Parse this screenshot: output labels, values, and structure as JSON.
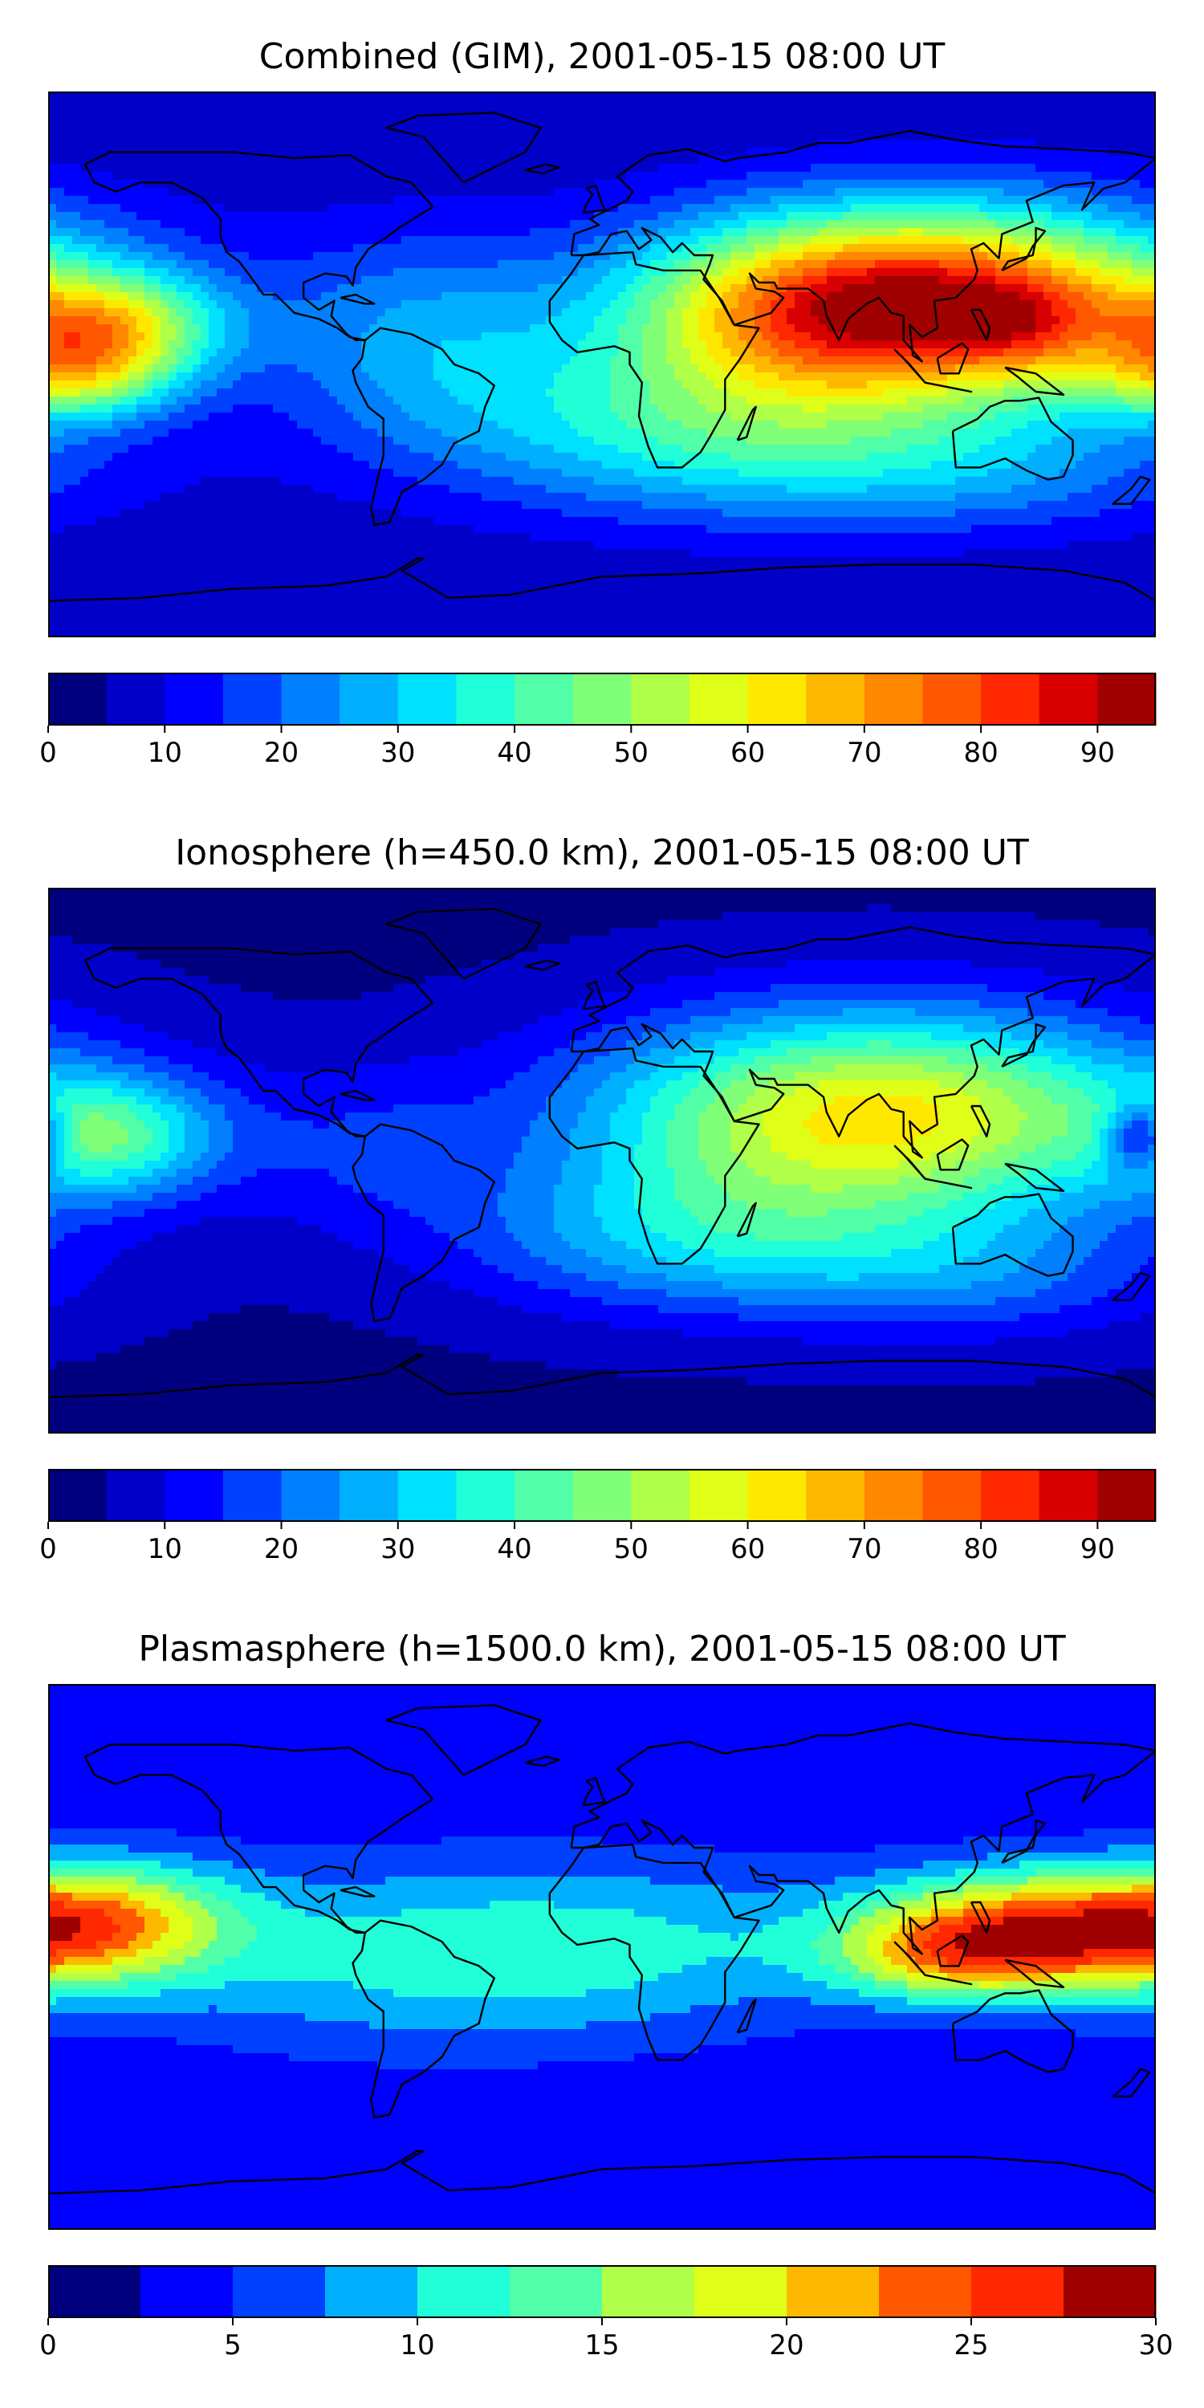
{
  "panels": [
    {
      "title": "Combined (GIM), 2001-05-15 08:00 UT",
      "colorbar": {
        "min": 0,
        "max": 95,
        "step": 5,
        "ticks": [
          "0",
          "10",
          "20",
          "30",
          "40",
          "50",
          "60",
          "70",
          "80",
          "90"
        ],
        "tick_values": [
          0,
          10,
          20,
          30,
          40,
          50,
          60,
          70,
          80,
          90
        ]
      },
      "field": {
        "base": 6,
        "blobs": [
          {
            "lon": 110,
            "lat": 20,
            "slon": 60,
            "slat": 22,
            "amp": 80
          },
          {
            "lon": 135,
            "lat": 12,
            "slon": 14,
            "slat": 10,
            "amp": 12
          },
          {
            "lon": 60,
            "lat": 18,
            "slon": 40,
            "slat": 20,
            "amp": 18
          },
          {
            "lon": 30,
            "lat": -20,
            "slon": 60,
            "slat": 20,
            "amp": 28
          },
          {
            "lon": -160,
            "lat": 12,
            "slon": 25,
            "slat": 12,
            "amp": 38
          },
          {
            "lon": -170,
            "lat": -5,
            "slon": 22,
            "slat": 10,
            "amp": 28
          },
          {
            "lon": -60,
            "lat": 10,
            "slon": 35,
            "slat": 25,
            "amp": 18
          },
          {
            "lon": 120,
            "lat": -35,
            "slon": 60,
            "slat": 15,
            "amp": 15
          }
        ]
      }
    },
    {
      "title": "Ionosphere  (h=450.0 km), 2001-05-15 08:00 UT",
      "colorbar": {
        "min": 0,
        "max": 95,
        "step": 5,
        "ticks": [
          "0",
          "10",
          "20",
          "30",
          "40",
          "50",
          "60",
          "70",
          "80",
          "90"
        ],
        "tick_values": [
          0,
          10,
          20,
          30,
          40,
          50,
          60,
          70,
          80,
          90
        ]
      },
      "field": {
        "base": 4,
        "blobs": [
          {
            "lon": 90,
            "lat": 15,
            "slon": 65,
            "slat": 24,
            "amp": 58
          },
          {
            "lon": 30,
            "lat": -25,
            "slon": 55,
            "slat": 18,
            "amp": 22
          },
          {
            "lon": -160,
            "lat": 8,
            "slon": 25,
            "slat": 14,
            "amp": 30
          },
          {
            "lon": 120,
            "lat": -38,
            "slon": 50,
            "slat": 15,
            "amp": 14
          },
          {
            "lon": 175,
            "lat": 8,
            "slon": 8,
            "slat": 8,
            "amp": -30
          },
          {
            "lon": -80,
            "lat": 5,
            "slon": 30,
            "slat": 20,
            "amp": 10
          }
        ]
      }
    },
    {
      "title": "Plasmasphere (h=1500.0 km), 2001-05-15 08:00 UT",
      "colorbar": {
        "min": 0,
        "max": 30,
        "step": 2.5,
        "ticks": [
          "0",
          "5",
          "10",
          "15",
          "20",
          "25",
          "30"
        ],
        "tick_values": [
          0,
          5,
          10,
          15,
          20,
          25,
          30
        ]
      },
      "field": {
        "base": 3,
        "blobs": [
          {
            "lon": 145,
            "lat": 8,
            "slon": 40,
            "slat": 14,
            "amp": 22
          },
          {
            "lon": 110,
            "lat": 0,
            "slon": 25,
            "slat": 10,
            "amp": 8
          },
          {
            "lon": -160,
            "lat": 12,
            "slon": 30,
            "slat": 14,
            "amp": 12
          },
          {
            "lon": -60,
            "lat": 0,
            "slon": 70,
            "slat": 22,
            "amp": 7
          },
          {
            "lon": 20,
            "lat": 5,
            "slon": 60,
            "slat": 20,
            "amp": 4
          }
        ]
      }
    }
  ],
  "colormap": [
    "#00007f",
    "#0000c8",
    "#0000ff",
    "#0040ff",
    "#0080ff",
    "#00b0ff",
    "#00e0ff",
    "#20ffd8",
    "#50ffa8",
    "#80ff78",
    "#b0ff48",
    "#e0ff18",
    "#ffe800",
    "#ffb800",
    "#ff8800",
    "#ff5800",
    "#ff2800",
    "#d80000",
    "#a00000"
  ],
  "coastline_color": "#000000"
}
